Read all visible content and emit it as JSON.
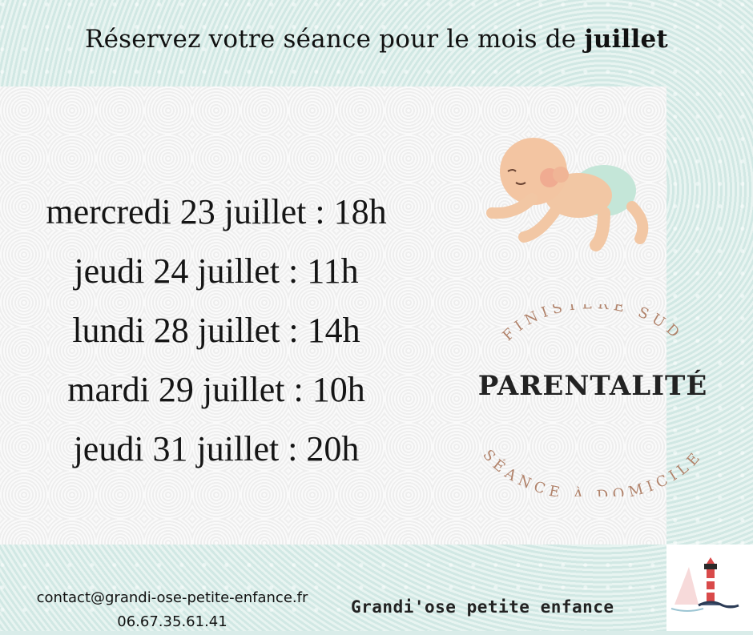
{
  "header": {
    "prefix": "Réservez votre séance pour le mois de ",
    "bold_word": "juillet"
  },
  "dates": [
    "mercredi 23 juillet : 18h",
    "jeudi 24 juillet : 11h",
    "lundi 28 juillet : 14h",
    "mardi 29 juillet : 10h",
    "jeudi 31 juillet : 20h"
  ],
  "emblem": {
    "top_arc": "FINISTÈRE SUD",
    "title": "PARENTALITÉ",
    "bottom_arc": "SÉANCE À DOMICILE"
  },
  "footer": {
    "email": "contact@grandi-ose-petite-enfance.fr",
    "phone": "06.67.35.61.41",
    "brand": "Grandi'ose petite enfance"
  },
  "colors": {
    "accent_arc": "#b1836b",
    "background": "#d9ece9",
    "lighthouse": "#d94a4a"
  },
  "icons": [
    "crawling-baby-illustration",
    "lighthouse-logo"
  ]
}
